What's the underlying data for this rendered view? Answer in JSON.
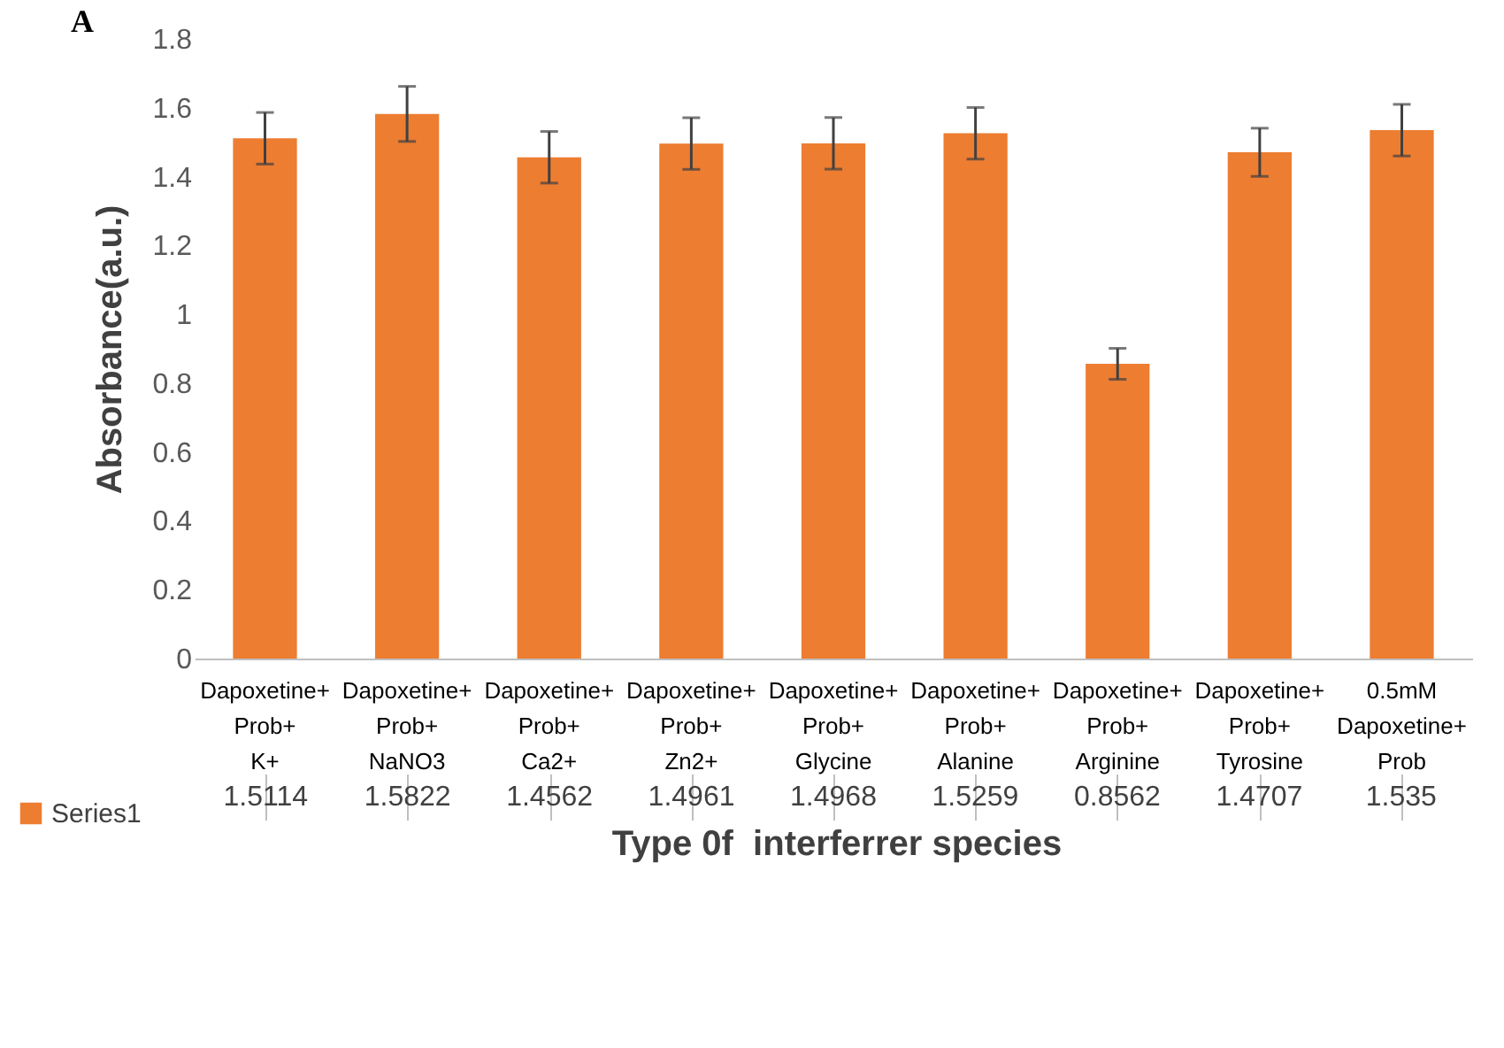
{
  "chart_data": {
    "type": "bar",
    "xlabel": "Type 0f  interferrer species",
    "ylabel": "Absorbance(a.u.)",
    "annotations": [
      "A"
    ],
    "categories": [
      "Dapoxetine+Prob+K+",
      "Dapoxetine+Prob+NaNO3",
      "Dapoxetine+Prob+Ca2+",
      "Dapoxetine+Prob+Zn2+",
      "Dapoxetine+Prob+Glycine",
      "Dapoxetine+Prob+Alanine",
      "Dapoxetine+Prob+Arginine",
      "Dapoxetine+Prob+Tyrosine",
      "0.5mM Dapoxetine+Prob"
    ],
    "series": [
      {
        "name": "Series1",
        "color": "#ed7d31",
        "values": [
          1.5114,
          1.5822,
          1.4562,
          1.4961,
          1.4968,
          1.5259,
          0.8562,
          1.4707,
          1.535
        ],
        "errors": [
          0.075,
          0.08,
          0.075,
          0.075,
          0.075,
          0.075,
          0.045,
          0.07,
          0.075
        ]
      }
    ],
    "ylim": [
      0,
      1.8
    ],
    "yticks": [
      0,
      0.2,
      0.4,
      0.6,
      0.8,
      1,
      1.2,
      1.4,
      1.6,
      1.8
    ],
    "grid": false,
    "legend": "bottom left",
    "data_labels": true
  }
}
